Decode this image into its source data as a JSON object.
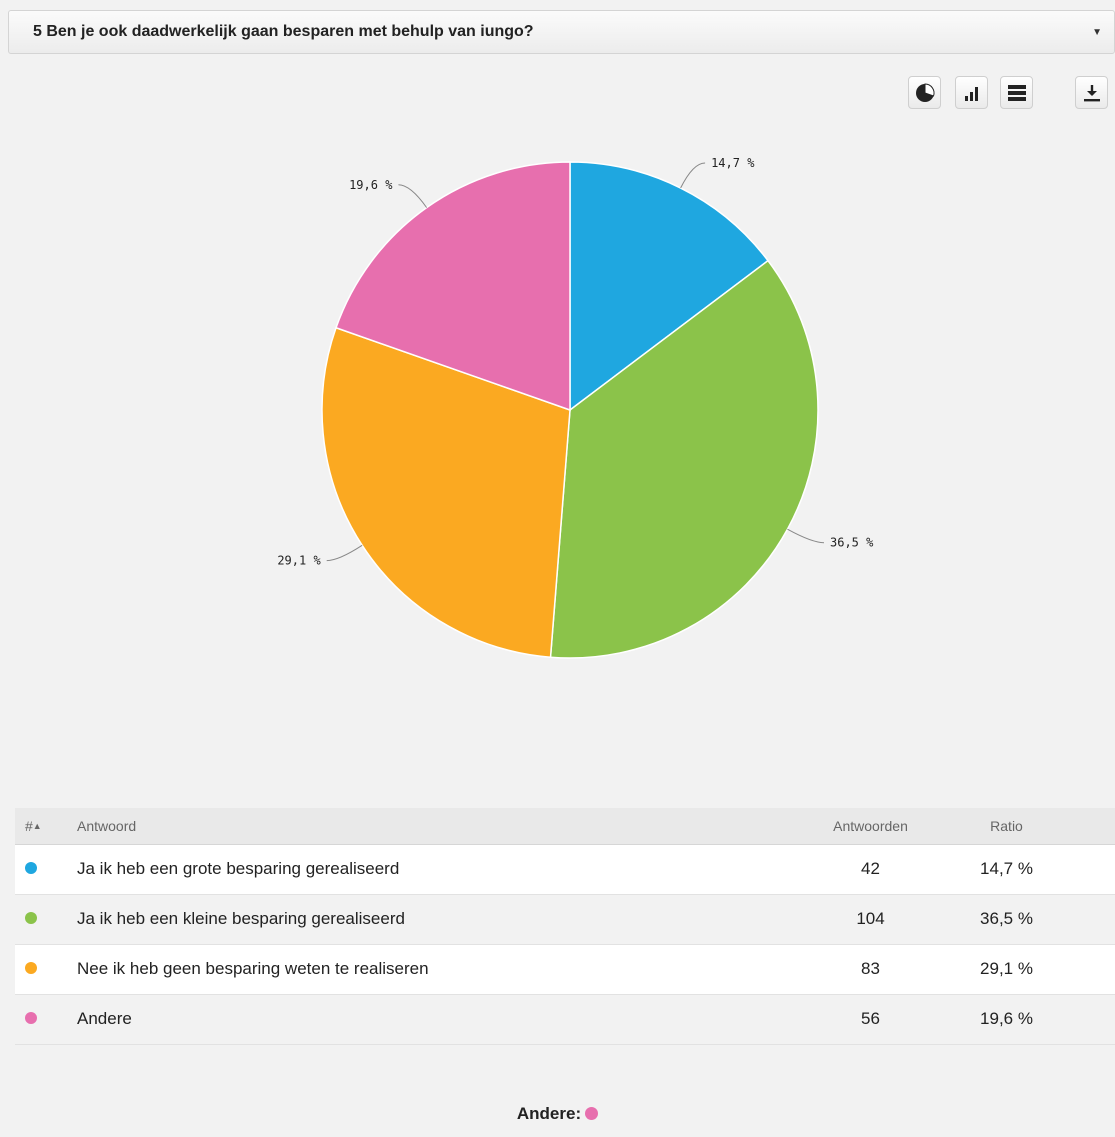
{
  "question": {
    "title": "5 Ben je ook daadwerkelijk gaan besparen met behulp van iungo?",
    "caret_icon": "caret-down-icon"
  },
  "toolbar": {
    "buttons": [
      {
        "name": "pie-chart-view-button",
        "icon": "pie-chart-icon"
      },
      {
        "name": "bar-chart-view-button",
        "icon": "bar-chart-icon"
      },
      {
        "name": "table-view-button",
        "icon": "list-icon"
      },
      {
        "name": "download-button",
        "icon": "download-icon"
      }
    ]
  },
  "chart_data": {
    "type": "pie",
    "slices": [
      {
        "label": "Ja ik heb een grote besparing gerealiseerd",
        "value": 14.7,
        "display": "14,7 %",
        "color": "#1fa7e0"
      },
      {
        "label": "Ja ik heb een kleine besparing gerealiseerd",
        "value": 36.5,
        "display": "36,5 %",
        "color": "#8bc34a"
      },
      {
        "label": "Nee ik heb geen besparing weten te realiseren",
        "value": 29.1,
        "display": "29,1 %",
        "color": "#fba921"
      },
      {
        "label": "Andere",
        "value": 19.6,
        "display": "19,6 %",
        "color": "#e76fae"
      }
    ]
  },
  "table": {
    "headers": {
      "num": "#",
      "answer": "Antwoord",
      "count": "Antwoorden",
      "ratio": "Ratio"
    },
    "rows": [
      {
        "answer": "Ja ik heb een grote besparing gerealiseerd",
        "count": "42",
        "ratio": "14,7 %",
        "color": "#1fa7e0"
      },
      {
        "answer": "Ja ik heb een kleine besparing gerealiseerd",
        "count": "104",
        "ratio": "36,5 %",
        "color": "#8bc34a"
      },
      {
        "answer": "Nee ik heb geen besparing weten te realiseren",
        "count": "83",
        "ratio": "29,1 %",
        "color": "#fba921"
      },
      {
        "answer": "Andere",
        "count": "56",
        "ratio": "19,6 %",
        "color": "#e76fae"
      }
    ]
  },
  "other": {
    "label": "Andere:",
    "color": "#e76fae"
  }
}
